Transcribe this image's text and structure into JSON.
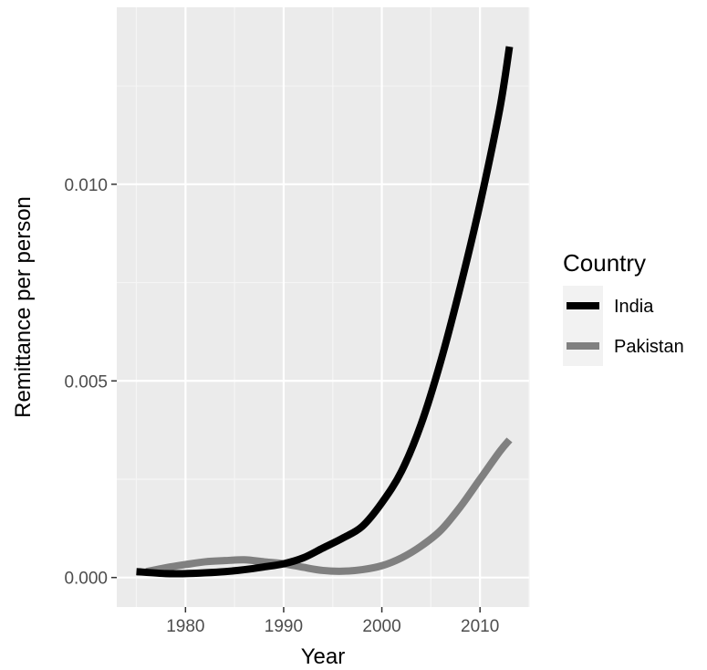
{
  "chart_data": {
    "type": "line",
    "title": "",
    "xlabel": "Year",
    "ylabel": "Remittance per person",
    "xlim": [
      1973,
      2015
    ],
    "ylim": [
      -0.00075,
      0.0145
    ],
    "x_ticks": [
      1980,
      1990,
      2000,
      2010
    ],
    "x_tick_labels": [
      "1980",
      "1990",
      "2000",
      "2010"
    ],
    "y_ticks": [
      0,
      0.005,
      0.01
    ],
    "y_tick_labels": [
      "0.000",
      "0.005",
      "0.010"
    ],
    "grid": true,
    "legend": {
      "title": "Country",
      "position": "right"
    },
    "series": [
      {
        "name": "India",
        "color": "#000000",
        "x": [
          1975,
          1978,
          1980,
          1982,
          1984,
          1986,
          1988,
          1990,
          1992,
          1994,
          1996,
          1998,
          2000,
          2002,
          2004,
          2006,
          2008,
          2010,
          2012,
          2013
        ],
        "y": [
          0.00015,
          0.0001,
          0.0001,
          0.00012,
          0.00015,
          0.0002,
          0.00027,
          0.00035,
          0.0005,
          0.00075,
          0.001,
          0.0013,
          0.0019,
          0.0027,
          0.0039,
          0.0055,
          0.0074,
          0.0095,
          0.0119,
          0.0135
        ]
      },
      {
        "name": "Pakistan",
        "color": "#808080",
        "x": [
          1976,
          1978,
          1980,
          1982,
          1984,
          1986,
          1988,
          1990,
          1992,
          1994,
          1996,
          1998,
          2000,
          2002,
          2004,
          2006,
          2008,
          2010,
          2012,
          2013
        ],
        "y": [
          0.00015,
          0.00025,
          0.00033,
          0.0004,
          0.00043,
          0.00045,
          0.0004,
          0.00035,
          0.00026,
          0.00018,
          0.00016,
          0.0002,
          0.0003,
          0.0005,
          0.0008,
          0.0012,
          0.0018,
          0.0025,
          0.0032,
          0.0035
        ]
      }
    ]
  }
}
